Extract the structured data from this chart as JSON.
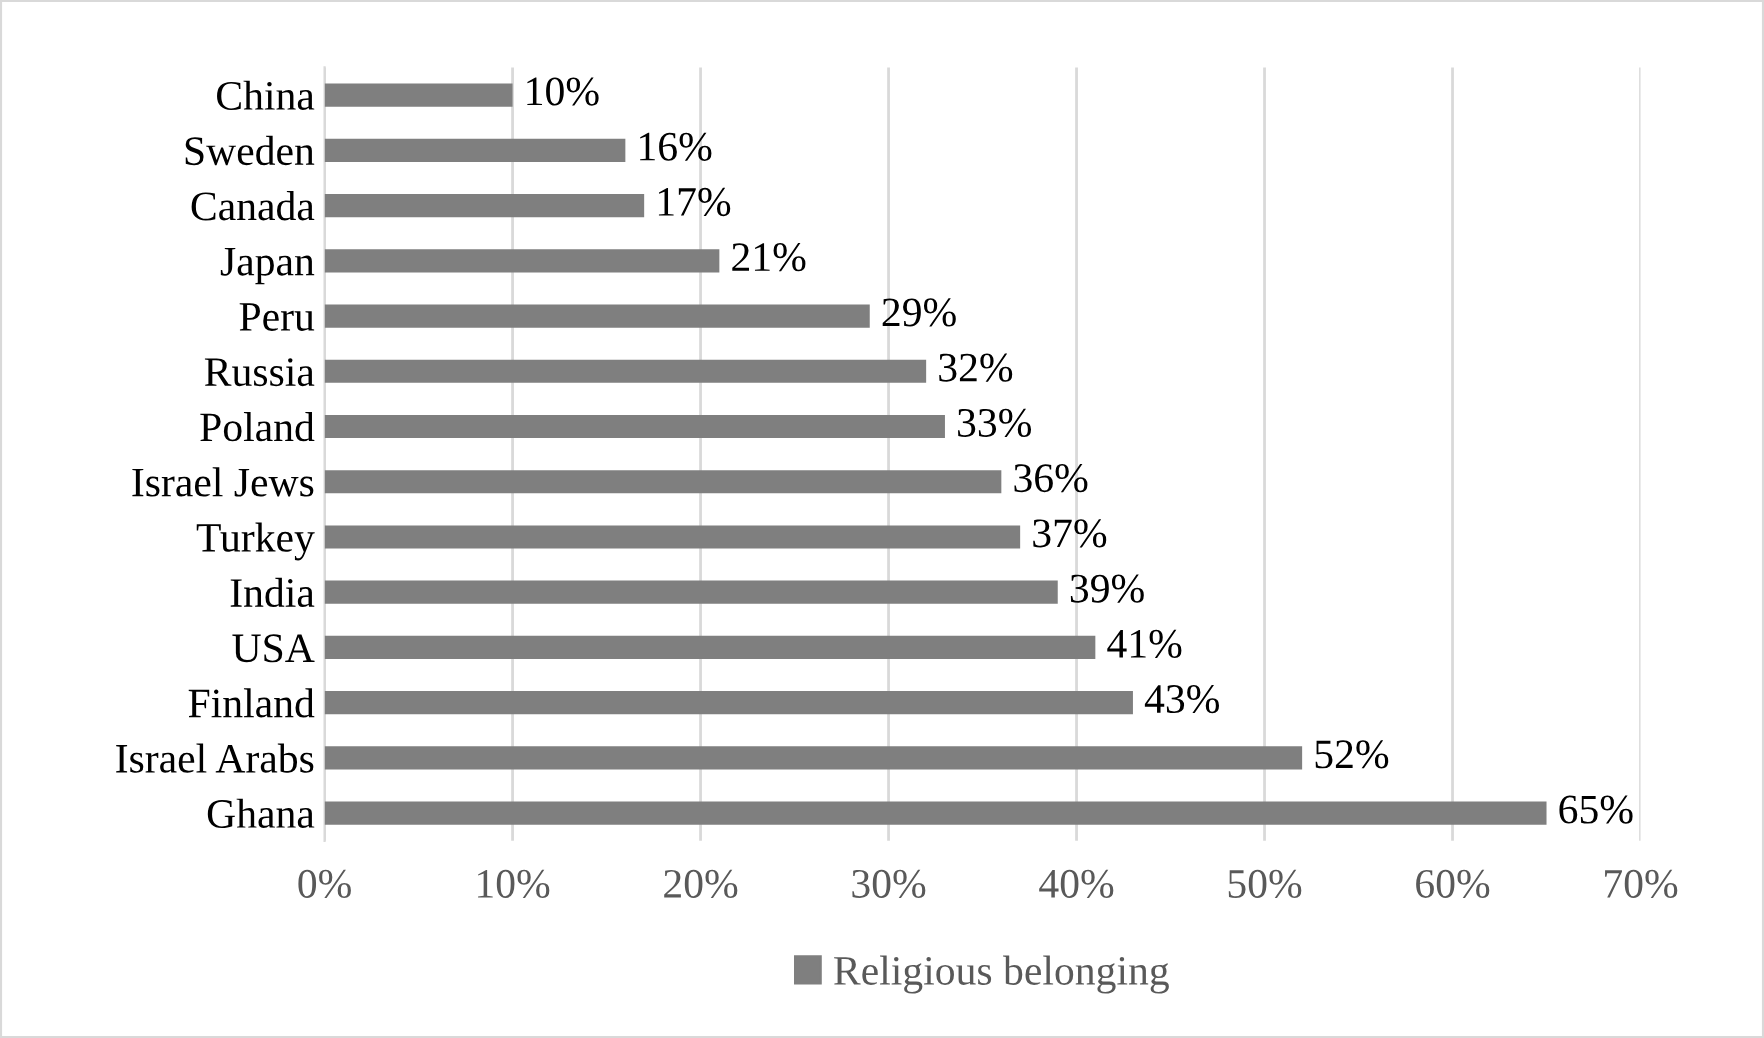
{
  "chart_data": {
    "type": "bar",
    "orientation": "horizontal",
    "categories": [
      "China",
      "Sweden",
      "Canada",
      "Japan",
      "Peru",
      "Russia",
      "Poland",
      "Israel Jews",
      "Turkey",
      "India",
      "USA",
      "Finland",
      "Israel Arabs",
      "Ghana"
    ],
    "series": [
      {
        "name": "Religious belonging",
        "color": "#7f7f7f",
        "values": [
          10,
          16,
          17,
          21,
          29,
          32,
          33,
          36,
          37,
          39,
          41,
          43,
          52,
          65
        ],
        "value_labels": [
          "10%",
          "16%",
          "17%",
          "21%",
          "29%",
          "32%",
          "33%",
          "36%",
          "37%",
          "39%",
          "41%",
          "43%",
          "52%",
          "65%"
        ]
      }
    ],
    "xlim": [
      0,
      70
    ],
    "xticks": [
      {
        "value": 0,
        "label": "0%"
      },
      {
        "value": 10,
        "label": "10%"
      },
      {
        "value": 20,
        "label": "20%"
      },
      {
        "value": 30,
        "label": "30%"
      },
      {
        "value": 40,
        "label": "40%"
      },
      {
        "value": 50,
        "label": "50%"
      },
      {
        "value": 60,
        "label": "60%"
      },
      {
        "value": 70,
        "label": "70%"
      }
    ],
    "grid": "x",
    "legend": "bottom"
  }
}
